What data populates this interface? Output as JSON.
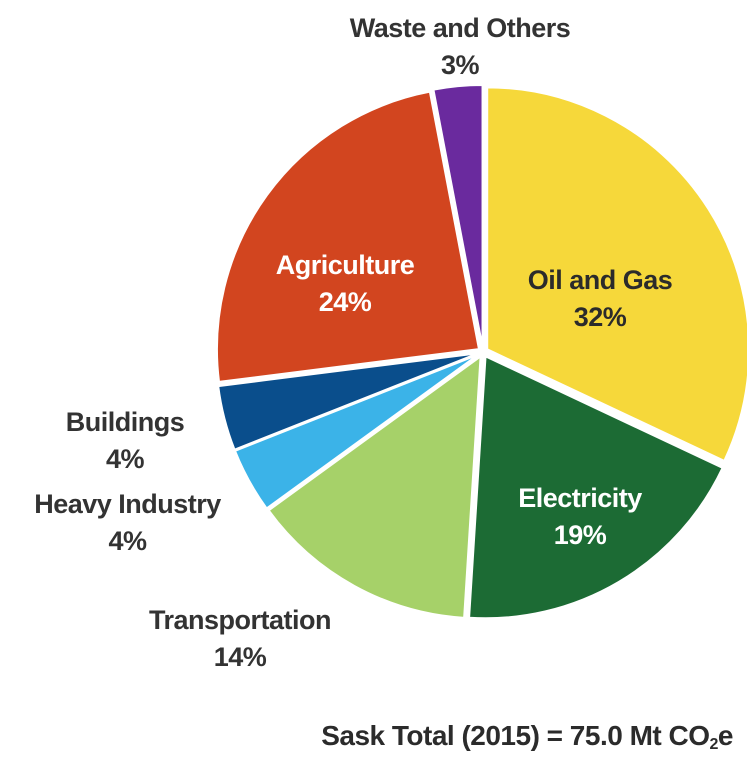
{
  "chart_data": {
    "type": "pie",
    "title": "",
    "slices": [
      {
        "label": "Oil and Gas",
        "value": 32,
        "value_label": "32%",
        "color": "#F6D83A"
      },
      {
        "label": "Electricity",
        "value": 19,
        "value_label": "19%",
        "color": "#1C6B34"
      },
      {
        "label": "Transportation",
        "value": 14,
        "value_label": "14%",
        "color": "#A6D169"
      },
      {
        "label": "Heavy Industry",
        "value": 4,
        "value_label": "4%",
        "color": "#3BB3E8"
      },
      {
        "label": "Buildings",
        "value": 4,
        "value_label": "4%",
        "color": "#0A4E8C"
      },
      {
        "label": "Agriculture",
        "value": 24,
        "value_label": "24%",
        "color": "#D2451F"
      },
      {
        "label": "Waste and Others",
        "value": 3,
        "value_label": "3%",
        "color": "#6A2A9E"
      }
    ],
    "footnote": {
      "prefix": "Sask Total (2015) = 75.0 Mt CO",
      "subscript": "2",
      "suffix": "e"
    }
  }
}
